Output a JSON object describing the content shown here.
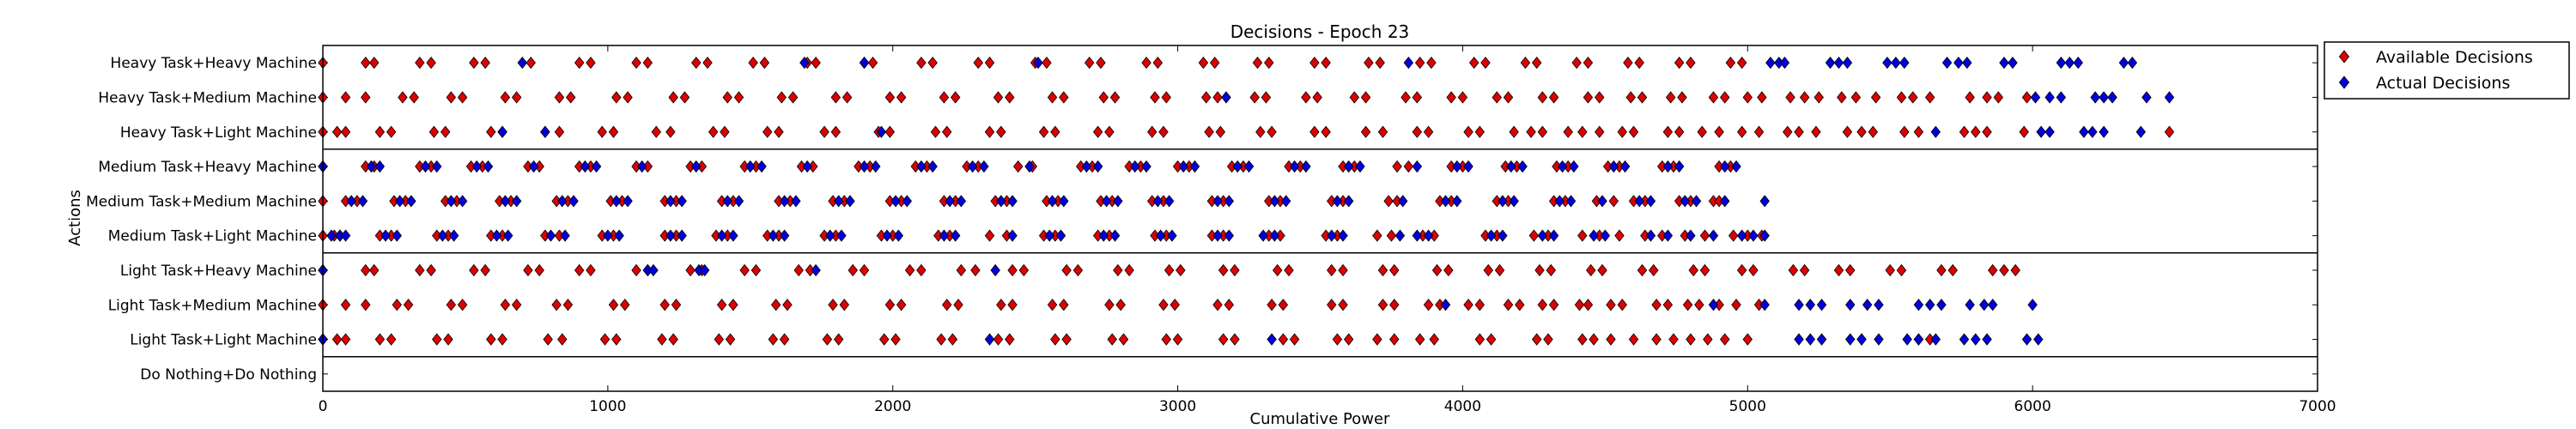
{
  "chart_data": {
    "type": "scatter",
    "title": "Decisions - Epoch 23",
    "xlabel": "Cumulative Power",
    "ylabel": "Actions",
    "xlim": [
      0,
      7000
    ],
    "xticks": [
      0,
      1000,
      2000,
      3000,
      4000,
      5000,
      6000,
      7000
    ],
    "grid": false,
    "legend_position": "outside-top-right",
    "categories": [
      "Heavy Task+Heavy Machine",
      "Heavy Task+Medium Machine",
      "Heavy Task+Light Machine",
      "Medium Task+Heavy Machine",
      "Medium Task+Medium Machine",
      "Medium Task+Light Machine",
      "Light Task+Heavy Machine",
      "Light Task+Medium Machine",
      "Light Task+Light Machine",
      "Do Nothing+Do Nothing"
    ],
    "group_separators_after": [
      "Heavy Task+Light Machine",
      "Medium Task+Light Machine",
      "Light Task+Light Machine"
    ],
    "series": [
      {
        "name": "Available Decisions",
        "color": "#dd0000",
        "marker": "diamond",
        "points": {
          "Heavy Task+Heavy Machine": [
            0,
            150,
            180,
            340,
            380,
            530,
            570,
            730,
            900,
            940,
            1100,
            1140,
            1310,
            1350,
            1510,
            1550,
            1700,
            1730,
            1900,
            1930,
            2100,
            2140,
            2300,
            2340,
            2500,
            2540,
            2690,
            2730,
            2890,
            2930,
            3090,
            3130,
            3280,
            3320,
            3480,
            3520,
            3670,
            3710,
            3850,
            3890,
            4040,
            4080,
            4220,
            4260,
            4400,
            4440,
            4580,
            4620,
            4760,
            4800,
            4940,
            4980
          ],
          "Heavy Task+Medium Machine": [
            0,
            80,
            150,
            280,
            320,
            450,
            490,
            640,
            680,
            830,
            870,
            1030,
            1070,
            1230,
            1270,
            1420,
            1460,
            1610,
            1650,
            1800,
            1840,
            1990,
            2030,
            2180,
            2220,
            2370,
            2410,
            2560,
            2600,
            2740,
            2780,
            2920,
            2960,
            3100,
            3140,
            3270,
            3310,
            3450,
            3490,
            3620,
            3660,
            3800,
            3840,
            3960,
            4000,
            4120,
            4160,
            4280,
            4320,
            4440,
            4480,
            4590,
            4630,
            4730,
            4770,
            4880,
            4920,
            5000,
            5050,
            5150,
            5200,
            5250,
            5330,
            5380,
            5450,
            5540,
            5580,
            5640,
            5780,
            5840,
            5880,
            5980
          ],
          "Heavy Task+Light Machine": [
            0,
            50,
            80,
            200,
            240,
            390,
            430,
            590,
            630,
            780,
            830,
            980,
            1020,
            1170,
            1220,
            1370,
            1410,
            1560,
            1600,
            1760,
            1800,
            1950,
            1990,
            2150,
            2190,
            2340,
            2380,
            2530,
            2570,
            2720,
            2760,
            2910,
            2950,
            3110,
            3150,
            3290,
            3330,
            3480,
            3520,
            3660,
            3720,
            3840,
            3880,
            4020,
            4060,
            4180,
            4240,
            4280,
            4370,
            4420,
            4480,
            4560,
            4600,
            4720,
            4760,
            4840,
            4900,
            4980,
            5040,
            5140,
            5180,
            5240,
            5350,
            5400,
            5440,
            5550,
            5600,
            5760,
            5800,
            5840,
            5970,
            6480
          ],
          "Medium Task+Heavy Machine": [
            0,
            150,
            180,
            340,
            380,
            520,
            560,
            720,
            760,
            900,
            940,
            1100,
            1140,
            1290,
            1330,
            1480,
            1520,
            1680,
            1720,
            1880,
            1920,
            2080,
            2120,
            2260,
            2300,
            2440,
            2490,
            2660,
            2700,
            2830,
            2870,
            3000,
            3040,
            3190,
            3230,
            3390,
            3430,
            3580,
            3620,
            3770,
            3810,
            3960,
            4000,
            4150,
            4190,
            4330,
            4370,
            4510,
            4550,
            4700,
            4740,
            4900,
            4940
          ],
          "Medium Task+Medium Machine": [
            0,
            80,
            120,
            250,
            290,
            430,
            470,
            620,
            660,
            820,
            860,
            1010,
            1050,
            1200,
            1240,
            1400,
            1440,
            1600,
            1640,
            1790,
            1830,
            1990,
            2030,
            2180,
            2220,
            2360,
            2400,
            2540,
            2580,
            2730,
            2770,
            2910,
            2950,
            3120,
            3160,
            3320,
            3360,
            3540,
            3580,
            3740,
            3770,
            3920,
            3960,
            4120,
            4160,
            4320,
            4360,
            4470,
            4530,
            4600,
            4640,
            4760,
            4800,
            4880,
            4900
          ],
          "Medium Task+Light Machine": [
            0,
            40,
            60,
            200,
            240,
            400,
            440,
            590,
            630,
            780,
            830,
            980,
            1020,
            1200,
            1240,
            1380,
            1420,
            1560,
            1600,
            1760,
            1800,
            1960,
            2000,
            2160,
            2200,
            2340,
            2400,
            2530,
            2570,
            2720,
            2760,
            2920,
            2960,
            3120,
            3160,
            3320,
            3360,
            3520,
            3560,
            3700,
            3750,
            3860,
            3900,
            4080,
            4120,
            4250,
            4300,
            4420,
            4480,
            4550,
            4640,
            4700,
            4780,
            4850,
            4950,
            5000,
            5050
          ],
          "Light Task+Heavy Machine": [
            0,
            150,
            180,
            340,
            380,
            530,
            570,
            720,
            760,
            900,
            940,
            1100,
            1140,
            1290,
            1330,
            1480,
            1520,
            1670,
            1710,
            1860,
            1900,
            2060,
            2100,
            2240,
            2290,
            2420,
            2460,
            2610,
            2650,
            2790,
            2830,
            2970,
            3010,
            3160,
            3200,
            3350,
            3390,
            3540,
            3580,
            3720,
            3760,
            3910,
            3950,
            4090,
            4130,
            4270,
            4310,
            4450,
            4490,
            4630,
            4670,
            4810,
            4850,
            4980,
            5020,
            5160,
            5200,
            5320,
            5360,
            5500,
            5540,
            5680,
            5720,
            5860,
            5900,
            5940
          ],
          "Light Task+Medium Machine": [
            0,
            80,
            150,
            260,
            300,
            450,
            490,
            640,
            680,
            820,
            860,
            1020,
            1060,
            1200,
            1240,
            1400,
            1440,
            1590,
            1630,
            1790,
            1830,
            1990,
            2030,
            2190,
            2230,
            2380,
            2420,
            2560,
            2600,
            2760,
            2800,
            2950,
            2990,
            3140,
            3180,
            3330,
            3370,
            3540,
            3580,
            3720,
            3760,
            3880,
            3920,
            4020,
            4060,
            4160,
            4200,
            4280,
            4320,
            4410,
            4440,
            4520,
            4560,
            4680,
            4720,
            4790,
            4830,
            4900,
            4960,
            5040
          ],
          "Light Task+Light Machine": [
            0,
            50,
            80,
            200,
            240,
            400,
            440,
            590,
            630,
            790,
            840,
            990,
            1030,
            1190,
            1230,
            1390,
            1430,
            1580,
            1620,
            1770,
            1810,
            1970,
            2010,
            2170,
            2210,
            2370,
            2410,
            2570,
            2610,
            2770,
            2810,
            2960,
            3000,
            3160,
            3200,
            3370,
            3410,
            3560,
            3600,
            3700,
            3760,
            3850,
            3900,
            4060,
            4100,
            4260,
            4300,
            4420,
            4460,
            4520,
            4600,
            4680,
            4740,
            4800,
            4860,
            4920,
            5000,
            5400,
            5600,
            5640
          ]
        }
      },
      {
        "name": "Actual Decisions",
        "color": "#0000dd",
        "marker": "diamond",
        "points": {
          "Heavy Task+Heavy Machine": [
            700,
            1690,
            1900,
            2510,
            3810,
            5080,
            5110,
            5130,
            5290,
            5320,
            5350,
            5490,
            5520,
            5550,
            5700,
            5740,
            5770,
            5900,
            5930,
            6100,
            6130,
            6160,
            6320,
            6350
          ],
          "Heavy Task+Medium Machine": [
            3170,
            6010,
            6060,
            6100,
            6220,
            6250,
            6280,
            6400,
            6480
          ],
          "Heavy Task+Light Machine": [
            630,
            780,
            1960,
            5660,
            6030,
            6060,
            6180,
            6210,
            6250,
            6380
          ],
          "Medium Task+Heavy Machine": [
            0,
            170,
            200,
            360,
            400,
            540,
            580,
            740,
            920,
            960,
            1120,
            1310,
            1500,
            1540,
            1700,
            1900,
            1940,
            2100,
            2140,
            2280,
            2320,
            2480,
            2680,
            2720,
            2850,
            2890,
            3020,
            3060,
            3210,
            3250,
            3410,
            3450,
            3600,
            3640,
            3840,
            3980,
            4020,
            4170,
            4210,
            4350,
            4390,
            4530,
            4570,
            4720,
            4760,
            4920,
            4960
          ],
          "Medium Task+Medium Machine": [
            100,
            140,
            270,
            310,
            450,
            490,
            640,
            680,
            840,
            880,
            1030,
            1070,
            1220,
            1260,
            1420,
            1460,
            1620,
            1660,
            1810,
            1850,
            2010,
            2050,
            2200,
            2240,
            2380,
            2420,
            2560,
            2600,
            2750,
            2790,
            2930,
            2970,
            3140,
            3180,
            3340,
            3380,
            3560,
            3600,
            3790,
            3940,
            3980,
            4140,
            4180,
            4340,
            4380,
            4490,
            4620,
            4660,
            4780,
            4820,
            4920,
            5060
          ],
          "Medium Task+Light Machine": [
            30,
            60,
            80,
            220,
            260,
            420,
            460,
            610,
            650,
            800,
            850,
            1000,
            1040,
            1220,
            1260,
            1400,
            1440,
            1580,
            1620,
            1780,
            1820,
            1980,
            2020,
            2180,
            2220,
            2420,
            2550,
            2590,
            2740,
            2780,
            2940,
            2980,
            3140,
            3180,
            3300,
            3340,
            3540,
            3580,
            3780,
            3840,
            3880,
            4100,
            4140,
            4280,
            4320,
            4460,
            4500,
            4660,
            4720,
            4800,
            4880,
            4980,
            5020,
            5060
          ],
          "Light Task+Heavy Machine": [
            0,
            1140,
            1160,
            1320,
            1340,
            1730,
            2360
          ],
          "Light Task+Medium Machine": [
            3940,
            4880,
            5060,
            5180,
            5220,
            5260,
            5360,
            5420,
            5460,
            5600,
            5640,
            5680,
            5780,
            5830,
            5860,
            6000
          ],
          "Light Task+Light Machine": [
            0,
            2340,
            3330,
            5180,
            5220,
            5260,
            5360,
            5400,
            5460,
            5560,
            5600,
            5660,
            5760,
            5800,
            5840,
            5980,
            6020
          ]
        }
      }
    ]
  }
}
